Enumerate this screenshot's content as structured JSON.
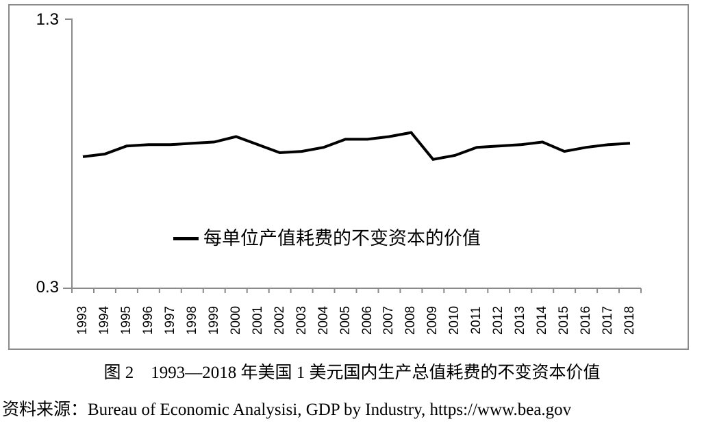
{
  "chart_data": {
    "type": "line",
    "title": "",
    "xlabel": "",
    "ylabel": "",
    "categories": [
      "1993",
      "1994",
      "1995",
      "1996",
      "1997",
      "1998",
      "1999",
      "2000",
      "2001",
      "2002",
      "2003",
      "2004",
      "2005",
      "2006",
      "2007",
      "2008",
      "2009",
      "2010",
      "2011",
      "2012",
      "2013",
      "2014",
      "2015",
      "2016",
      "2017",
      "2018"
    ],
    "series": [
      {
        "name": "每单位产值耗费的不变资本的价值",
        "color": "#000000",
        "values": [
          0.79,
          0.8,
          0.83,
          0.835,
          0.835,
          0.84,
          0.845,
          0.865,
          0.835,
          0.805,
          0.81,
          0.825,
          0.855,
          0.855,
          0.865,
          0.88,
          0.78,
          0.795,
          0.825,
          0.83,
          0.835,
          0.845,
          0.81,
          0.825,
          0.835,
          0.84
        ]
      }
    ],
    "ylim": [
      0.3,
      1.3
    ],
    "y_tick_labels": [
      "1.3",
      "0.3"
    ],
    "grid": false,
    "legend_position": "inside-center-left",
    "axis_color": "#8a8a8a",
    "background": "#ffffff"
  },
  "legend": {
    "label": "每单位产值耗费的不变资本的价值"
  },
  "caption": "图 2　1993—2018 年美国 1 美元国内生产总值耗费的不变资本价值",
  "source_note": "资料来源：Bureau of Economic Analysisi, GDP by Industry, https://www.bea.gov"
}
